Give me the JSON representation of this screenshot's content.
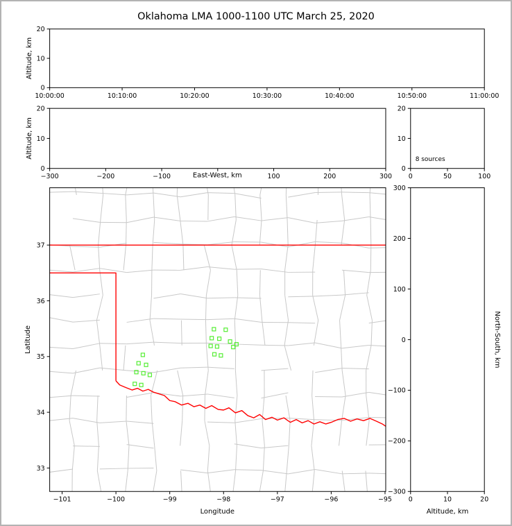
{
  "title": "Oklahoma LMA 1000-1100 UTC March 25, 2020",
  "colors": {
    "state_border": "#ff0000",
    "county_lines": "#c8c8c8",
    "source_marker": "#55ee33",
    "axis": "#000000",
    "background": "#ffffff"
  },
  "chart_data": {
    "type": "scatter",
    "title": "Oklahoma LMA 1000-1100 UTC March 25, 2020",
    "panels": {
      "time_height": {
        "ylabel": "Altitude, km",
        "x_tick_labels": [
          "10:00:00",
          "10:10:00",
          "10:20:00",
          "10:30:00",
          "10:40:00",
          "10:50:00",
          "11:00:00"
        ],
        "y_ticks": [
          0,
          10,
          20
        ],
        "y_tick_labels": [
          "0",
          "10",
          "20"
        ],
        "ylim": [
          0,
          20
        ],
        "points": []
      },
      "ew_height": {
        "xlabel": "East-West, km",
        "ylabel": "Altitude, km",
        "x_ticks": [
          -300,
          -200,
          -100,
          0,
          100,
          200,
          300
        ],
        "x_tick_labels": [
          "−300",
          "−200",
          "−100",
          "",
          "100",
          "200",
          "300"
        ],
        "xlim": [
          -300,
          300
        ],
        "y_ticks": [
          0,
          10,
          20
        ],
        "y_tick_labels": [
          "0",
          "10",
          "20"
        ],
        "ylim": [
          0,
          20
        ],
        "points": []
      },
      "source_histogram": {
        "annotation": "8 sources",
        "x_ticks": [
          0,
          50,
          100
        ],
        "x_tick_labels": [
          "0",
          "50",
          "100"
        ],
        "xlim": [
          0,
          100
        ],
        "y_ticks": [
          0,
          10,
          20
        ],
        "y_tick_labels": [
          "0",
          "10",
          "20"
        ],
        "ylim": [
          0,
          20
        ]
      },
      "map": {
        "xlabel": "Longitude",
        "ylabel": "Latitude",
        "x_ticks": [
          -101,
          -100,
          -99,
          -98,
          -97,
          -96,
          -95
        ],
        "x_tick_labels": [
          "−101",
          "−100",
          "−99",
          "−98",
          "−97",
          "−96",
          "−95"
        ],
        "xlim": [
          -101.231,
          -94.987
        ],
        "y_ticks": [
          33,
          34,
          35,
          36,
          37
        ],
        "y_tick_labels": [
          "33",
          "34",
          "35",
          "36",
          "37"
        ],
        "ylim": [
          32.579,
          38.028
        ],
        "sources_lonlat": [
          [
            -99.5,
            35.03
          ],
          [
            -99.58,
            34.88
          ],
          [
            -99.44,
            34.85
          ],
          [
            -99.62,
            34.72
          ],
          [
            -99.49,
            34.7
          ],
          [
            -99.37,
            34.67
          ],
          [
            -99.65,
            34.51
          ],
          [
            -99.53,
            34.49
          ],
          [
            -98.18,
            35.49
          ],
          [
            -97.96,
            35.48
          ],
          [
            -98.22,
            35.33
          ],
          [
            -98.08,
            35.32
          ],
          [
            -97.88,
            35.27
          ],
          [
            -97.76,
            35.22
          ],
          [
            -98.24,
            35.19
          ],
          [
            -98.12,
            35.18
          ],
          [
            -97.82,
            35.17
          ],
          [
            -98.17,
            35.04
          ],
          [
            -98.05,
            35.02
          ]
        ]
      },
      "ns_height": {
        "xlabel": "Altitude, km",
        "ylabel": "North-South, km",
        "x_ticks": [
          0,
          10,
          20
        ],
        "x_tick_labels": [
          "0",
          "10",
          "20"
        ],
        "xlim": [
          0,
          20
        ],
        "y_ticks": [
          -300,
          -200,
          -100,
          0,
          100,
          200,
          300
        ],
        "y_tick_labels": [
          "−300",
          "−200",
          "−100",
          "0",
          "100",
          "200",
          "300"
        ],
        "ylim": [
          -300,
          300
        ],
        "points": []
      }
    }
  }
}
